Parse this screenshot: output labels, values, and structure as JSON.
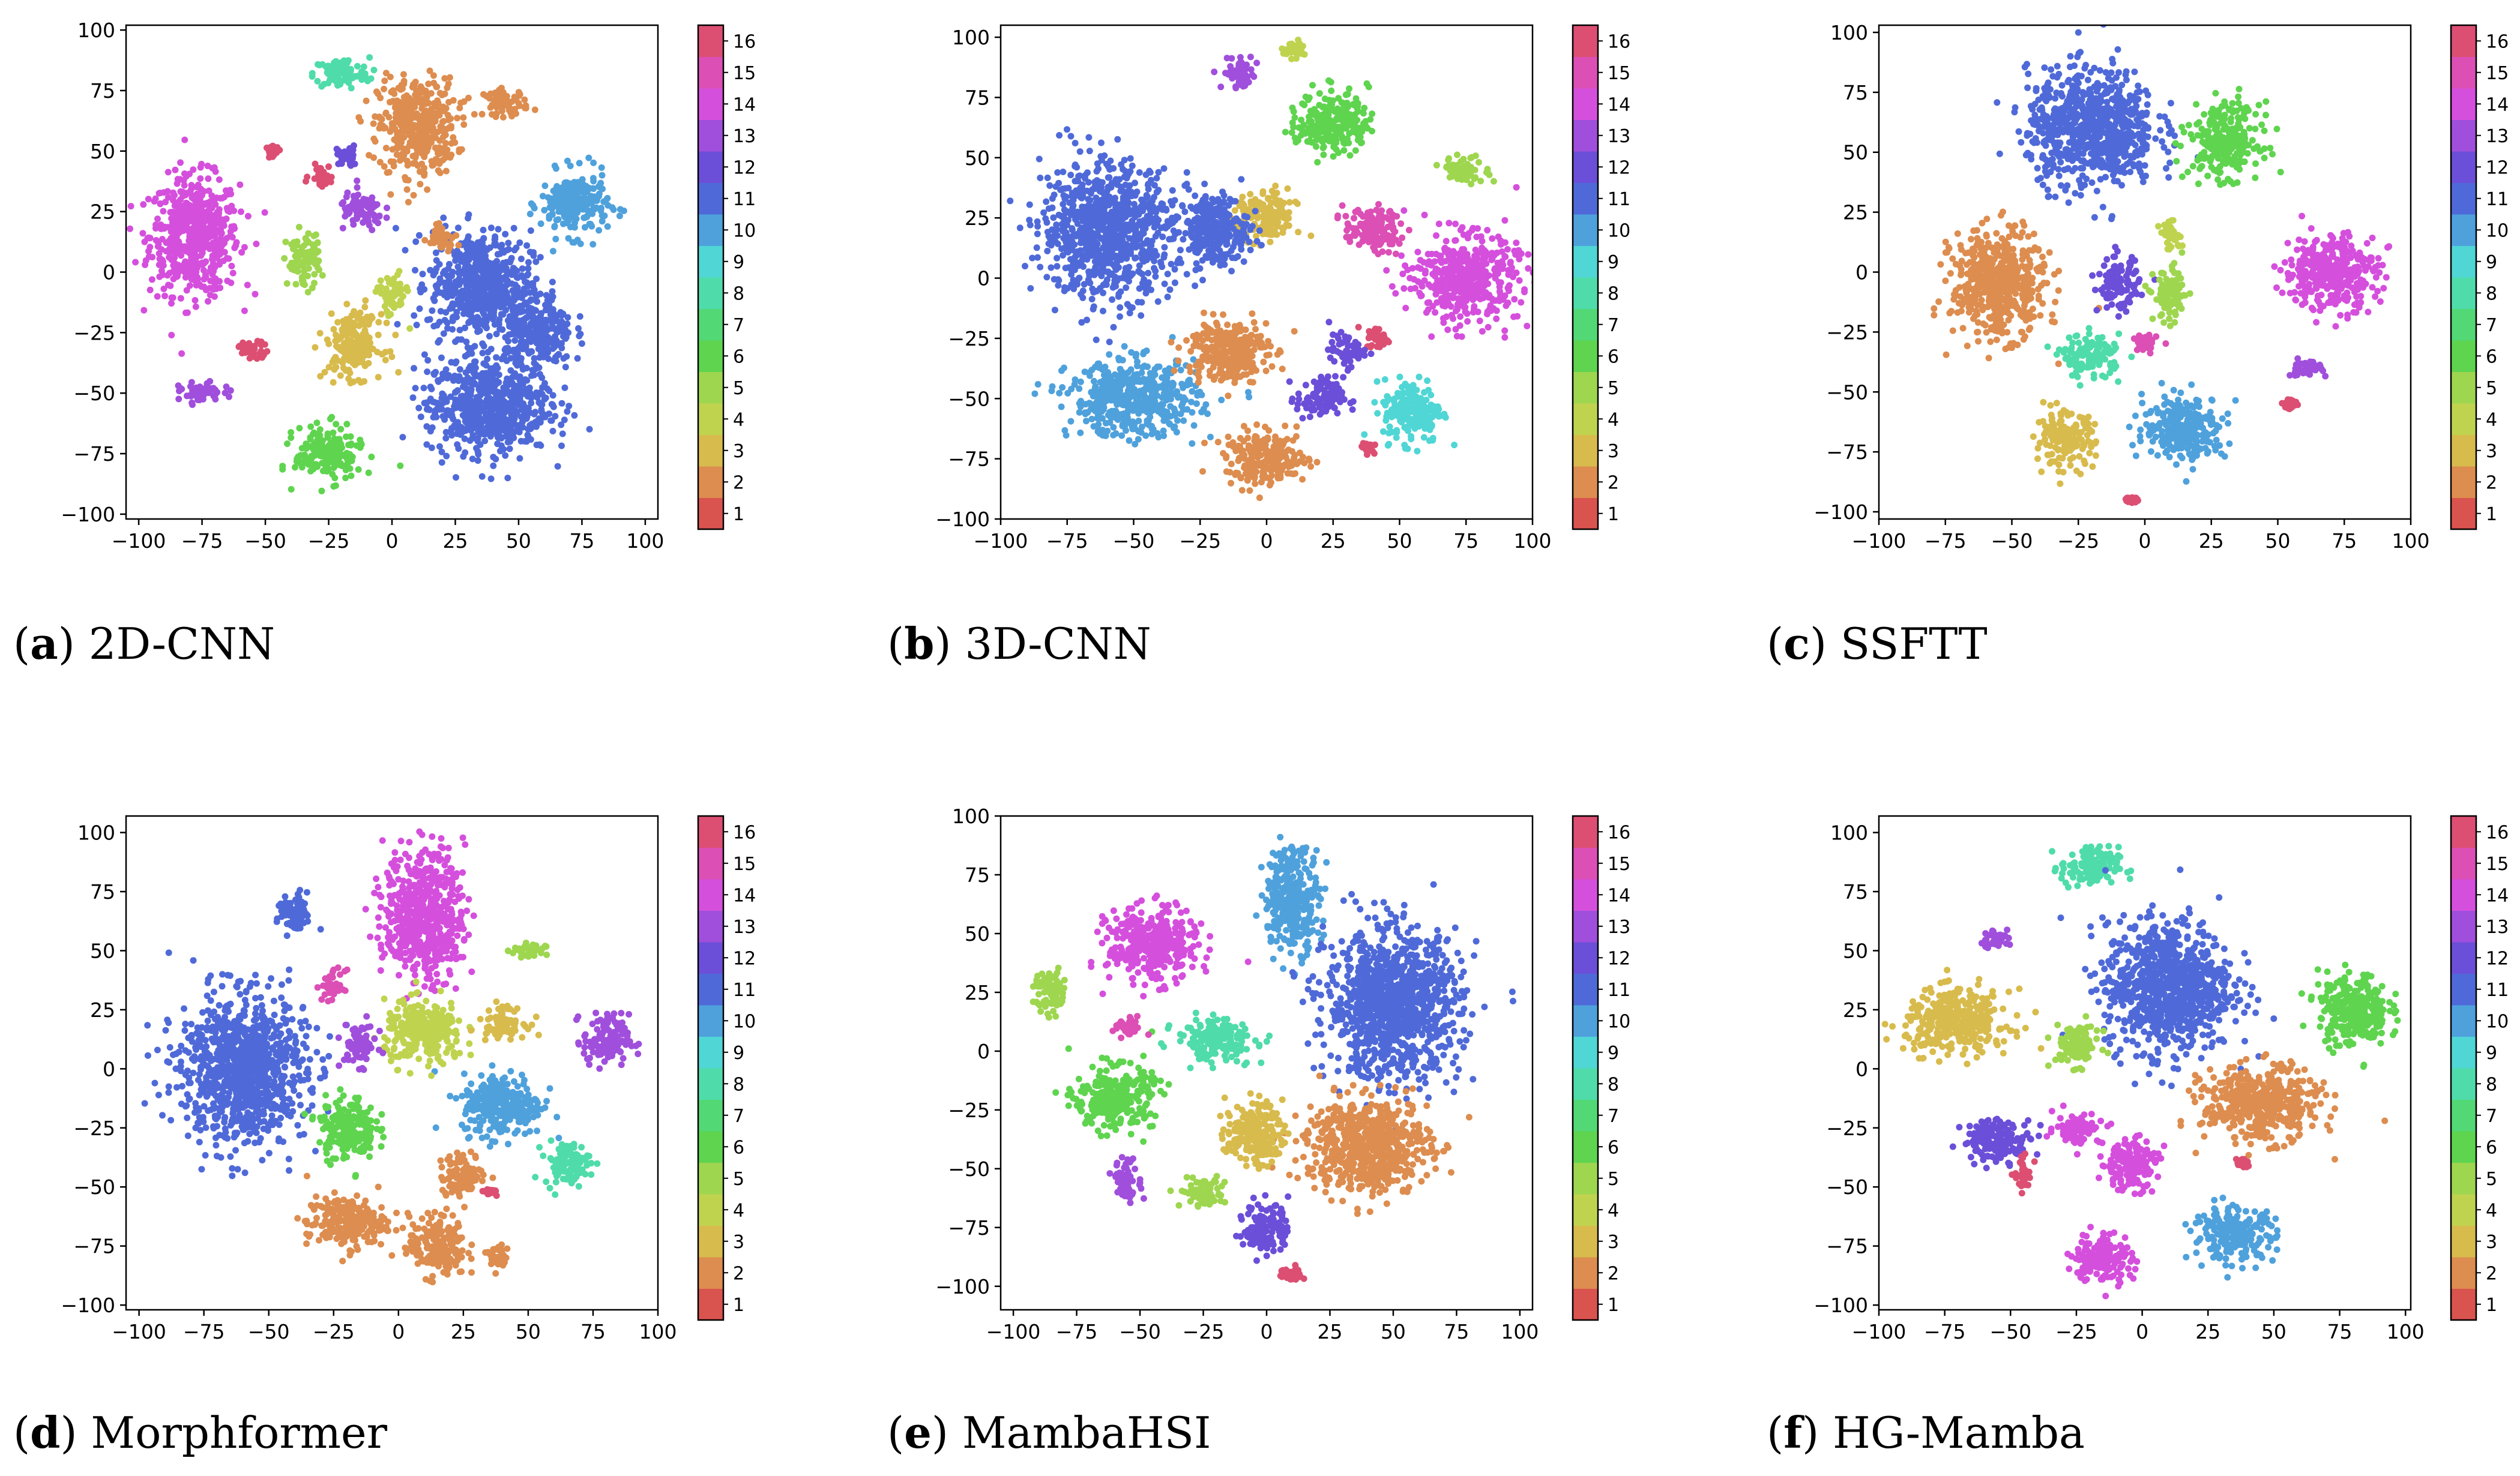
{
  "colors": {
    "1": "#d9534f",
    "2": "#dd8d4f",
    "3": "#d8bb4d",
    "4": "#c0d34f",
    "5": "#9ed64f",
    "6": "#5fd44f",
    "7": "#52d875",
    "8": "#4fdcaa",
    "9": "#4fd6d5",
    "10": "#4fa1dc",
    "11": "#4f6ad8",
    "12": "#6b4fd8",
    "13": "#a04fdc",
    "14": "#d54fdd",
    "15": "#dc4fb5",
    "16": "#dc4f72"
  },
  "chart_data": [
    {
      "type": "scatter",
      "caption_letter": "a",
      "caption_text": " 2D-CNN",
      "xlim": [
        -105,
        105
      ],
      "ylim": [
        -102,
        102
      ],
      "xticks": [
        -100,
        -75,
        -50,
        -25,
        0,
        25,
        50,
        75,
        100
      ],
      "yticks": [
        -100,
        -75,
        -50,
        -25,
        0,
        25,
        50,
        75,
        100
      ],
      "xtick_labels": [
        "−100",
        "−75",
        "−50",
        "−25",
        "0",
        "25",
        "50",
        "75",
        "100"
      ],
      "ytick_labels": [
        "−100",
        "−75",
        "−50",
        "−25",
        "0",
        "25",
        "50",
        "75",
        "100"
      ],
      "colorbar_labels": [
        "1",
        "2",
        "3",
        "4",
        "5",
        "6",
        "7",
        "8",
        "9",
        "10",
        "11",
        "12",
        "13",
        "14",
        "15",
        "16"
      ],
      "clusters": [
        {
          "c": 14,
          "x": -78,
          "y": 15,
          "w": 16,
          "h": 22
        },
        {
          "c": 8,
          "x": -20,
          "y": 82,
          "w": 10,
          "h": 6
        },
        {
          "c": 2,
          "x": 10,
          "y": 60,
          "w": 14,
          "h": 18
        },
        {
          "c": 2,
          "x": 45,
          "y": 70,
          "w": 8,
          "h": 5
        },
        {
          "c": 10,
          "x": 72,
          "y": 28,
          "w": 12,
          "h": 12
        },
        {
          "c": 11,
          "x": 35,
          "y": -5,
          "w": 18,
          "h": 20
        },
        {
          "c": 11,
          "x": 38,
          "y": -55,
          "w": 22,
          "h": 18
        },
        {
          "c": 11,
          "x": 58,
          "y": -25,
          "w": 12,
          "h": 14
        },
        {
          "c": 13,
          "x": -12,
          "y": 25,
          "w": 8,
          "h": 7
        },
        {
          "c": 12,
          "x": -18,
          "y": 48,
          "w": 4,
          "h": 4
        },
        {
          "c": 16,
          "x": -28,
          "y": 40,
          "w": 4,
          "h": 4
        },
        {
          "c": 3,
          "x": -15,
          "y": -30,
          "w": 10,
          "h": 12
        },
        {
          "c": 4,
          "x": 0,
          "y": -10,
          "w": 5,
          "h": 8
        },
        {
          "c": 6,
          "x": -25,
          "y": -75,
          "w": 12,
          "h": 10
        },
        {
          "c": 5,
          "x": -35,
          "y": 5,
          "w": 6,
          "h": 10
        },
        {
          "c": 13,
          "x": -75,
          "y": -50,
          "w": 8,
          "h": 4
        },
        {
          "c": 16,
          "x": -55,
          "y": -32,
          "w": 6,
          "h": 3
        },
        {
          "c": 2,
          "x": 20,
          "y": 15,
          "w": 5,
          "h": 5
        },
        {
          "c": 16,
          "x": -47,
          "y": 50,
          "w": 2,
          "h": 2
        }
      ]
    },
    {
      "type": "scatter",
      "caption_letter": "b",
      "caption_text": " 3D-CNN",
      "xlim": [
        -100,
        100
      ],
      "ylim": [
        -100,
        105
      ],
      "xticks": [
        -100,
        -75,
        -50,
        -25,
        0,
        25,
        50,
        75,
        100
      ],
      "yticks": [
        -100,
        -75,
        -50,
        -25,
        0,
        25,
        50,
        75,
        100
      ],
      "xtick_labels": [
        "−100",
        "−75",
        "−50",
        "−25",
        "0",
        "25",
        "50",
        "75",
        "100"
      ],
      "ytick_labels": [
        "−100",
        "−75",
        "−50",
        "−25",
        "0",
        "25",
        "50",
        "75",
        "100"
      ],
      "colorbar_labels": [
        "1",
        "2",
        "3",
        "4",
        "5",
        "6",
        "7",
        "8",
        "9",
        "10",
        "11",
        "12",
        "13",
        "14",
        "15",
        "16"
      ],
      "clusters": [
        {
          "c": 11,
          "x": -60,
          "y": 20,
          "w": 22,
          "h": 25
        },
        {
          "c": 10,
          "x": -50,
          "y": -50,
          "w": 22,
          "h": 14
        },
        {
          "c": 2,
          "x": 0,
          "y": -75,
          "w": 14,
          "h": 10
        },
        {
          "c": 2,
          "x": -15,
          "y": -30,
          "w": 14,
          "h": 12
        },
        {
          "c": 14,
          "x": 75,
          "y": 0,
          "w": 18,
          "h": 16
        },
        {
          "c": 15,
          "x": 40,
          "y": 20,
          "w": 10,
          "h": 8
        },
        {
          "c": 6,
          "x": 25,
          "y": 65,
          "w": 12,
          "h": 12
        },
        {
          "c": 5,
          "x": 75,
          "y": 45,
          "w": 8,
          "h": 5
        },
        {
          "c": 13,
          "x": -10,
          "y": 85,
          "w": 6,
          "h": 6
        },
        {
          "c": 4,
          "x": 10,
          "y": 95,
          "w": 4,
          "h": 3
        },
        {
          "c": 3,
          "x": 0,
          "y": 25,
          "w": 10,
          "h": 10
        },
        {
          "c": 12,
          "x": 20,
          "y": -50,
          "w": 8,
          "h": 8
        },
        {
          "c": 9,
          "x": 55,
          "y": -55,
          "w": 10,
          "h": 12
        },
        {
          "c": 16,
          "x": 42,
          "y": -25,
          "w": 4,
          "h": 4
        },
        {
          "c": 11,
          "x": -20,
          "y": 20,
          "w": 12,
          "h": 14
        },
        {
          "c": 12,
          "x": 30,
          "y": -30,
          "w": 6,
          "h": 6
        },
        {
          "c": 16,
          "x": 38,
          "y": -70,
          "w": 2,
          "h": 2
        }
      ]
    },
    {
      "type": "scatter",
      "caption_letter": "c",
      "caption_text": " SSFTT",
      "xlim": [
        -100,
        100
      ],
      "ylim": [
        -103,
        103
      ],
      "xticks": [
        -100,
        -75,
        -50,
        -25,
        0,
        25,
        50,
        75,
        100
      ],
      "yticks": [
        -100,
        -75,
        -50,
        -25,
        0,
        25,
        50,
        75,
        100
      ],
      "xtick_labels": [
        "−100",
        "−75",
        "−50",
        "−25",
        "0",
        "25",
        "50",
        "75",
        "100"
      ],
      "ytick_labels": [
        "−100",
        "−75",
        "−50",
        "−25",
        "0",
        "25",
        "50",
        "75",
        "100"
      ],
      "colorbar_labels": [
        "1",
        "2",
        "3",
        "4",
        "5",
        "6",
        "7",
        "8",
        "9",
        "10",
        "11",
        "12",
        "13",
        "14",
        "15",
        "16"
      ],
      "clusters": [
        {
          "c": 11,
          "x": -20,
          "y": 60,
          "w": 22,
          "h": 22
        },
        {
          "c": 6,
          "x": 30,
          "y": 55,
          "w": 12,
          "h": 14
        },
        {
          "c": 2,
          "x": -55,
          "y": -5,
          "w": 16,
          "h": 20
        },
        {
          "c": 14,
          "x": 70,
          "y": 0,
          "w": 16,
          "h": 14
        },
        {
          "c": 3,
          "x": -30,
          "y": -70,
          "w": 10,
          "h": 10
        },
        {
          "c": 10,
          "x": 15,
          "y": -65,
          "w": 14,
          "h": 12
        },
        {
          "c": 8,
          "x": -20,
          "y": -35,
          "w": 10,
          "h": 8
        },
        {
          "c": 12,
          "x": -10,
          "y": -5,
          "w": 7,
          "h": 10
        },
        {
          "c": 5,
          "x": 10,
          "y": -10,
          "w": 6,
          "h": 10
        },
        {
          "c": 15,
          "x": 0,
          "y": -30,
          "w": 4,
          "h": 4
        },
        {
          "c": 13,
          "x": 60,
          "y": -40,
          "w": 6,
          "h": 3
        },
        {
          "c": 4,
          "x": 10,
          "y": 15,
          "w": 4,
          "h": 5
        },
        {
          "c": 16,
          "x": -5,
          "y": -95,
          "w": 2,
          "h": 1
        },
        {
          "c": 16,
          "x": 55,
          "y": -55,
          "w": 2,
          "h": 2
        }
      ]
    },
    {
      "type": "scatter",
      "caption_letter": "d",
      "caption_text": " Morphformer",
      "xlim": [
        -105,
        100
      ],
      "ylim": [
        -102,
        107
      ],
      "xticks": [
        -100,
        -75,
        -50,
        -25,
        0,
        25,
        50,
        75,
        100
      ],
      "yticks": [
        -100,
        -75,
        -50,
        -25,
        0,
        25,
        50,
        75,
        100
      ],
      "xtick_labels": [
        "−100",
        "−75",
        "−50",
        "−25",
        "0",
        "25",
        "50",
        "75",
        "100"
      ],
      "ytick_labels": [
        "−100",
        "−75",
        "−50",
        "−25",
        "0",
        "25",
        "50",
        "75",
        "100"
      ],
      "colorbar_labels": [
        "1",
        "2",
        "3",
        "4",
        "5",
        "6",
        "7",
        "8",
        "9",
        "10",
        "11",
        "12",
        "13",
        "14",
        "15",
        "16"
      ],
      "clusters": [
        {
          "c": 11,
          "x": -60,
          "y": 0,
          "w": 22,
          "h": 28
        },
        {
          "c": 14,
          "x": 10,
          "y": 65,
          "w": 14,
          "h": 25
        },
        {
          "c": 11,
          "x": -40,
          "y": 65,
          "w": 6,
          "h": 8
        },
        {
          "c": 5,
          "x": 50,
          "y": 50,
          "w": 6,
          "h": 3
        },
        {
          "c": 13,
          "x": 80,
          "y": 12,
          "w": 8,
          "h": 10
        },
        {
          "c": 10,
          "x": 40,
          "y": -15,
          "w": 14,
          "h": 12
        },
        {
          "c": 8,
          "x": 65,
          "y": -40,
          "w": 8,
          "h": 8
        },
        {
          "c": 2,
          "x": -20,
          "y": -65,
          "w": 14,
          "h": 10
        },
        {
          "c": 2,
          "x": 15,
          "y": -75,
          "w": 10,
          "h": 12
        },
        {
          "c": 2,
          "x": 25,
          "y": -45,
          "w": 8,
          "h": 8
        },
        {
          "c": 6,
          "x": -20,
          "y": -25,
          "w": 10,
          "h": 12
        },
        {
          "c": 4,
          "x": 10,
          "y": 15,
          "w": 14,
          "h": 12
        },
        {
          "c": 3,
          "x": 40,
          "y": 20,
          "w": 8,
          "h": 6
        },
        {
          "c": 15,
          "x": -25,
          "y": 35,
          "w": 4,
          "h": 6
        },
        {
          "c": 13,
          "x": -15,
          "y": 10,
          "w": 6,
          "h": 8
        },
        {
          "c": 2,
          "x": 38,
          "y": -80,
          "w": 4,
          "h": 5
        },
        {
          "c": 16,
          "x": 35,
          "y": -52,
          "w": 2,
          "h": 1
        }
      ]
    },
    {
      "type": "scatter",
      "caption_letter": "e",
      "caption_text": " MambaHSI",
      "xlim": [
        -105,
        105
      ],
      "ylim": [
        -110,
        100
      ],
      "xticks": [
        -100,
        -75,
        -50,
        -25,
        0,
        25,
        50,
        75,
        100
      ],
      "yticks": [
        -100,
        -75,
        -50,
        -25,
        0,
        25,
        50,
        75,
        100
      ],
      "xtick_labels": [
        "−100",
        "−75",
        "−50",
        "−25",
        "0",
        "25",
        "50",
        "75",
        "100"
      ],
      "ytick_labels": [
        "−100",
        "−75",
        "−50",
        "−25",
        "0",
        "25",
        "50",
        "75",
        "100"
      ],
      "colorbar_labels": [
        "1",
        "2",
        "3",
        "4",
        "5",
        "6",
        "7",
        "8",
        "9",
        "10",
        "11",
        "12",
        "13",
        "14",
        "15",
        "16"
      ],
      "clusters": [
        {
          "c": 14,
          "x": -45,
          "y": 45,
          "w": 16,
          "h": 14
        },
        {
          "c": 10,
          "x": 10,
          "y": 65,
          "w": 10,
          "h": 20
        },
        {
          "c": 11,
          "x": 50,
          "y": 20,
          "w": 24,
          "h": 28
        },
        {
          "c": 2,
          "x": 40,
          "y": -40,
          "w": 22,
          "h": 18
        },
        {
          "c": 6,
          "x": -60,
          "y": -20,
          "w": 14,
          "h": 12
        },
        {
          "c": 8,
          "x": -20,
          "y": 5,
          "w": 14,
          "h": 8
        },
        {
          "c": 3,
          "x": -5,
          "y": -35,
          "w": 10,
          "h": 12
        },
        {
          "c": 12,
          "x": 0,
          "y": -75,
          "w": 8,
          "h": 10
        },
        {
          "c": 13,
          "x": -55,
          "y": -55,
          "w": 5,
          "h": 8
        },
        {
          "c": 5,
          "x": -25,
          "y": -60,
          "w": 8,
          "h": 6
        },
        {
          "c": 5,
          "x": -85,
          "y": 25,
          "w": 6,
          "h": 8
        },
        {
          "c": 15,
          "x": -55,
          "y": 10,
          "w": 5,
          "h": 4
        },
        {
          "c": 16,
          "x": 10,
          "y": -95,
          "w": 4,
          "h": 3
        }
      ]
    },
    {
      "type": "scatter",
      "caption_letter": "f",
      "caption_text": " HG-Mamba",
      "xlim": [
        -100,
        102
      ],
      "ylim": [
        -102,
        107
      ],
      "xticks": [
        -100,
        -75,
        -50,
        -25,
        0,
        25,
        50,
        75,
        100
      ],
      "yticks": [
        -100,
        -75,
        -50,
        -25,
        0,
        25,
        50,
        75,
        100
      ],
      "xtick_labels": [
        "−100",
        "−75",
        "−50",
        "−25",
        "0",
        "25",
        "50",
        "75",
        "100"
      ],
      "ytick_labels": [
        "−100",
        "−75",
        "−50",
        "−25",
        "0",
        "25",
        "50",
        "75",
        "100"
      ],
      "colorbar_labels": [
        "1",
        "2",
        "3",
        "4",
        "5",
        "6",
        "7",
        "8",
        "9",
        "10",
        "11",
        "12",
        "13",
        "14",
        "15",
        "16"
      ],
      "clusters": [
        {
          "c": 8,
          "x": -20,
          "y": 85,
          "w": 10,
          "h": 8
        },
        {
          "c": 11,
          "x": 10,
          "y": 35,
          "w": 22,
          "h": 25
        },
        {
          "c": 6,
          "x": 80,
          "y": 25,
          "w": 12,
          "h": 14
        },
        {
          "c": 3,
          "x": -70,
          "y": 20,
          "w": 18,
          "h": 12
        },
        {
          "c": 5,
          "x": -25,
          "y": 10,
          "w": 8,
          "h": 8
        },
        {
          "c": 2,
          "x": 45,
          "y": -15,
          "w": 20,
          "h": 14
        },
        {
          "c": 12,
          "x": -55,
          "y": -30,
          "w": 12,
          "h": 8
        },
        {
          "c": 14,
          "x": -15,
          "y": -80,
          "w": 10,
          "h": 10
        },
        {
          "c": 14,
          "x": -5,
          "y": -40,
          "w": 10,
          "h": 10
        },
        {
          "c": 10,
          "x": 35,
          "y": -70,
          "w": 14,
          "h": 10
        },
        {
          "c": 14,
          "x": -25,
          "y": -25,
          "w": 8,
          "h": 6
        },
        {
          "c": 13,
          "x": -55,
          "y": 55,
          "w": 5,
          "h": 4
        },
        {
          "c": 16,
          "x": -45,
          "y": -45,
          "w": 3,
          "h": 6
        },
        {
          "c": 16,
          "x": 38,
          "y": -40,
          "w": 2,
          "h": 2
        }
      ]
    }
  ]
}
